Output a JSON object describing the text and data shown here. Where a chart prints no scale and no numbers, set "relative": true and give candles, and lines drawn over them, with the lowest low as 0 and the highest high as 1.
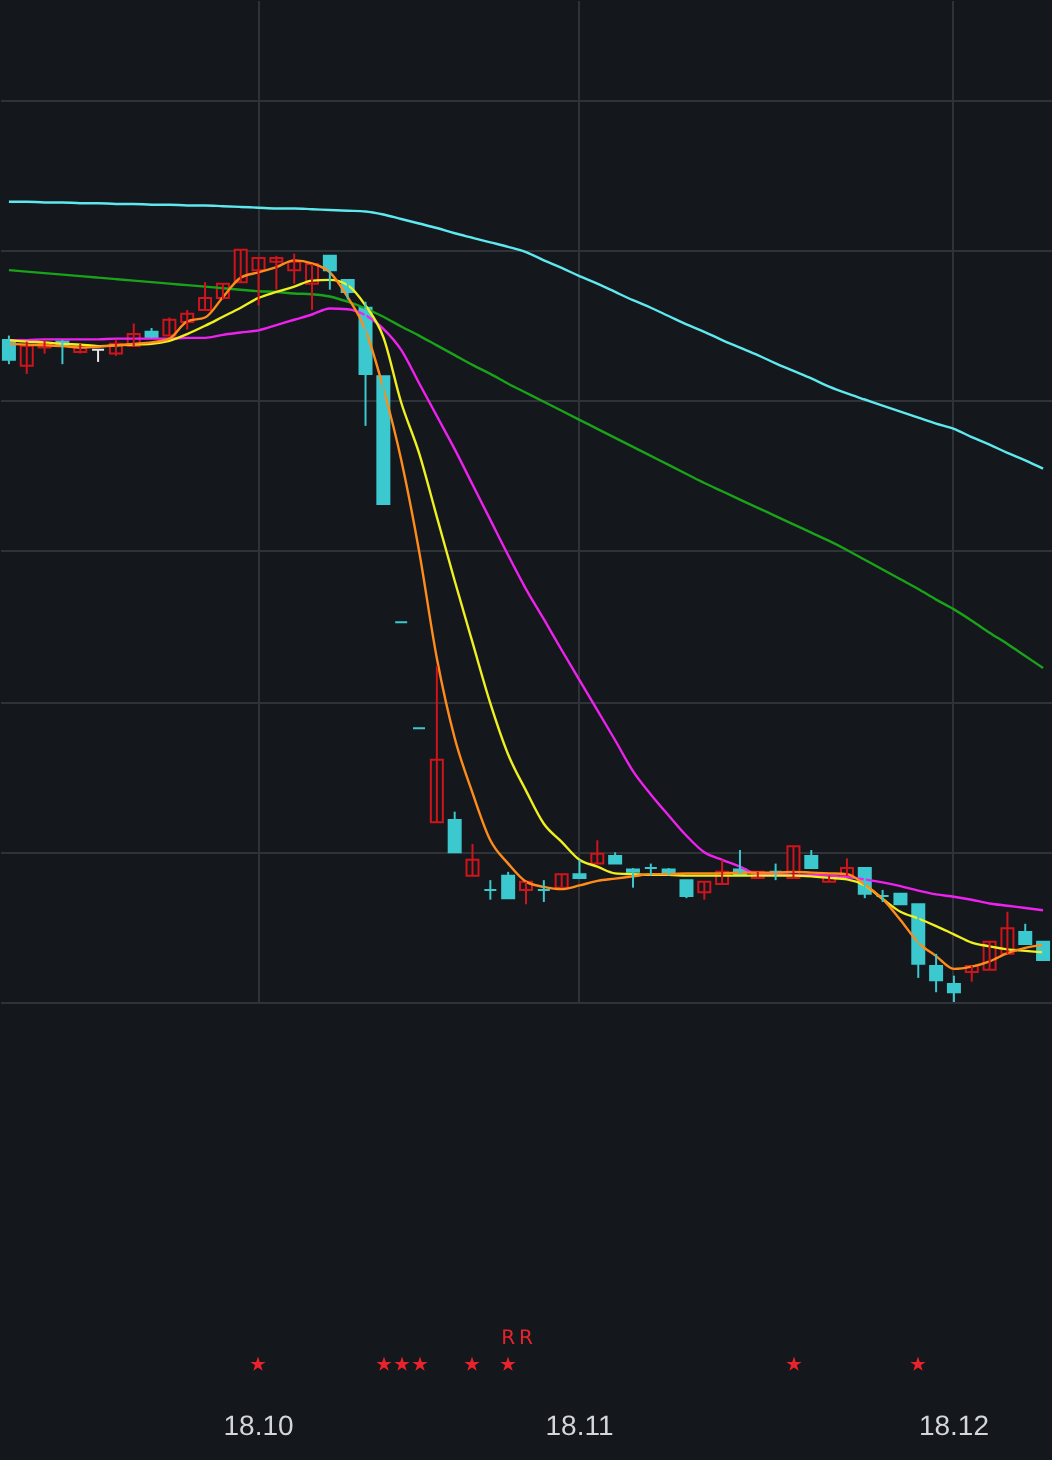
{
  "chart_data": {
    "type": "candlestick",
    "relative": true,
    "grid": true,
    "categories": [
      null,
      null,
      null,
      null,
      null,
      null,
      null,
      null,
      null,
      null,
      null,
      null,
      null,
      null,
      "18.10",
      null,
      null,
      null,
      null,
      null,
      null,
      null,
      null,
      null,
      null,
      null,
      null,
      null,
      null,
      null,
      null,
      null,
      "18.11",
      null,
      null,
      null,
      null,
      null,
      null,
      null,
      null,
      null,
      null,
      null,
      null,
      null,
      null,
      null,
      null,
      null,
      null,
      null,
      null,
      "18.12",
      null,
      null,
      null,
      null,
      null
    ],
    "ohlc": [
      [
        0.88,
        0.886,
        0.848,
        0.854
      ],
      [
        0.846,
        0.878,
        0.835,
        0.872
      ],
      [
        0.87,
        0.88,
        0.862,
        0.875
      ],
      [
        0.878,
        0.88,
        0.848,
        0.872
      ],
      [
        0.864,
        0.875,
        0.862,
        0.87
      ],
      [
        0.867,
        0.867,
        0.851,
        0.867
      ],
      [
        0.862,
        0.88,
        0.859,
        0.875
      ],
      [
        0.872,
        0.902,
        0.872,
        0.888
      ],
      [
        0.891,
        0.896,
        0.883,
        0.883
      ],
      [
        0.886,
        0.91,
        0.886,
        0.907
      ],
      [
        0.904,
        0.92,
        0.894,
        0.915
      ],
      [
        0.92,
        0.957,
        0.92,
        0.936
      ],
      [
        0.936,
        0.955,
        0.934,
        0.955
      ],
      [
        0.957,
        1.0,
        0.957,
        1.0
      ],
      [
        0.973,
        0.989,
        0.926,
        0.989
      ],
      [
        0.984,
        0.992,
        0.947,
        0.989
      ],
      [
        0.973,
        0.995,
        0.955,
        0.984
      ],
      [
        0.955,
        0.981,
        0.92,
        0.981
      ],
      [
        0.992,
        0.992,
        0.947,
        0.973
      ],
      [
        0.96,
        0.96,
        0.934,
        0.944
      ],
      [
        0.923,
        0.931,
        0.766,
        0.835
      ],
      [
        0.832,
        0.832,
        0.662,
        0.662
      ],
      [
        0.505,
        0.505,
        0.505,
        0.505
      ],
      [
        0.364,
        0.364,
        0.364,
        0.364
      ],
      [
        0.239,
        0.447,
        0.239,
        0.322
      ],
      [
        0.242,
        0.253,
        0.199,
        0.199
      ],
      [
        0.168,
        0.21,
        0.168,
        0.189
      ],
      [
        0.149,
        0.162,
        0.136,
        0.149
      ],
      [
        0.168,
        0.173,
        0.138,
        0.138
      ],
      [
        0.149,
        0.16,
        0.13,
        0.16
      ],
      [
        0.149,
        0.162,
        0.133,
        0.149
      ],
      [
        0.152,
        0.17,
        0.152,
        0.17
      ],
      [
        0.17,
        0.189,
        0.165,
        0.165
      ],
      [
        0.184,
        0.215,
        0.184,
        0.197
      ],
      [
        0.194,
        0.199,
        0.184,
        0.184
      ],
      [
        0.176,
        0.178,
        0.152,
        0.173
      ],
      [
        0.178,
        0.184,
        0.168,
        0.178
      ],
      [
        0.176,
        0.178,
        0.168,
        0.17
      ],
      [
        0.162,
        0.162,
        0.138,
        0.141
      ],
      [
        0.146,
        0.16,
        0.136,
        0.16
      ],
      [
        0.157,
        0.189,
        0.157,
        0.173
      ],
      [
        0.176,
        0.202,
        0.17,
        0.17
      ],
      [
        0.165,
        0.173,
        0.165,
        0.173
      ],
      [
        0.173,
        0.184,
        0.162,
        0.173
      ],
      [
        0.165,
        0.207,
        0.165,
        0.207
      ],
      [
        0.194,
        0.202,
        0.178,
        0.178
      ],
      [
        0.16,
        0.168,
        0.16,
        0.168
      ],
      [
        0.168,
        0.191,
        0.168,
        0.178
      ],
      [
        0.178,
        0.178,
        0.138,
        0.144
      ],
      [
        0.141,
        0.149,
        0.133,
        0.141
      ],
      [
        0.144,
        0.144,
        0.13,
        0.13
      ],
      [
        0.13,
        0.13,
        0.032,
        0.051
      ],
      [
        0.048,
        0.064,
        0.013,
        0.029
      ],
      [
        0.024,
        0.035,
        0.0,
        0.013
      ],
      [
        0.04,
        0.048,
        0.027,
        0.048
      ],
      [
        0.043,
        0.08,
        0.043,
        0.08
      ],
      [
        0.064,
        0.12,
        0.064,
        0.098
      ],
      [
        0.093,
        0.104,
        0.077,
        0.077
      ],
      [
        0.08,
        0.08,
        0.056,
        0.056
      ]
    ],
    "colors": [
      "#3bc9cf",
      "#d0141c",
      "#d0141c",
      "#3bc9cf",
      "#d0141c",
      "#e8e8e8",
      "#d0141c",
      "#d0141c",
      "#3bc9cf",
      "#d0141c",
      "#d0141c",
      "#d0141c",
      "#d0141c",
      "#d0141c",
      "#d0141c",
      "#d0141c",
      "#d0141c",
      "#d0141c",
      "#3bc9cf",
      "#3bc9cf",
      "#3bc9cf",
      "#3bc9cf",
      "#3bc9cf",
      "#3bc9cf",
      "#d0141c",
      "#3bc9cf",
      "#d0141c",
      "#3bc9cf",
      "#3bc9cf",
      "#d0141c",
      "#3bc9cf",
      "#d0141c",
      "#3bc9cf",
      "#d0141c",
      "#3bc9cf",
      "#3bc9cf",
      "#3bc9cf",
      "#3bc9cf",
      "#3bc9cf",
      "#d0141c",
      "#d0141c",
      "#3bc9cf",
      "#d0141c",
      "#3bc9cf",
      "#d0141c",
      "#3bc9cf",
      "#d0141c",
      "#d0141c",
      "#3bc9cf",
      "#3bc9cf",
      "#3bc9cf",
      "#3bc9cf",
      "#3bc9cf",
      "#3bc9cf",
      "#d0141c",
      "#d0141c",
      "#d0141c",
      "#3bc9cf",
      "#3bc9cf"
    ],
    "series": [
      {
        "type": "line",
        "color": "#5ee9ee",
        "values": [
          1.064,
          1.064,
          1.063,
          1.063,
          1.062,
          1.062,
          1.061,
          1.061,
          1.06,
          1.06,
          1.059,
          1.059,
          1.058,
          1.057,
          1.056,
          1.055,
          1.055,
          1.054,
          1.053,
          1.052,
          1.051,
          1.047,
          1.041,
          1.035,
          1.029,
          1.022,
          1.016,
          1.01,
          1.004,
          0.997,
          0.986,
          0.976,
          0.965,
          0.955,
          0.944,
          0.933,
          0.923,
          0.912,
          0.901,
          0.891,
          0.88,
          0.87,
          0.86,
          0.849,
          0.839,
          0.829,
          0.818,
          0.809,
          0.801,
          0.793,
          0.785,
          0.777,
          0.769,
          0.762,
          0.751,
          0.741,
          0.73,
          0.72,
          0.709
        ]
      },
      {
        "type": "line",
        "color": "#19a319",
        "values": [
          0.973,
          0.971,
          0.969,
          0.967,
          0.965,
          0.963,
          0.961,
          0.959,
          0.957,
          0.955,
          0.953,
          0.951,
          0.949,
          0.947,
          0.945,
          0.944,
          0.942,
          0.941,
          0.938,
          0.931,
          0.922,
          0.911,
          0.898,
          0.886,
          0.873,
          0.86,
          0.847,
          0.835,
          0.822,
          0.81,
          0.798,
          0.786,
          0.774,
          0.762,
          0.75,
          0.738,
          0.726,
          0.714,
          0.702,
          0.69,
          0.679,
          0.668,
          0.657,
          0.646,
          0.635,
          0.624,
          0.613,
          0.601,
          0.588,
          0.575,
          0.562,
          0.549,
          0.535,
          0.522,
          0.507,
          0.491,
          0.476,
          0.46,
          0.444
        ]
      },
      {
        "type": "line",
        "color": "#ee22ee",
        "values": [
          0.88,
          0.88,
          0.881,
          0.881,
          0.881,
          0.881,
          0.882,
          0.882,
          0.882,
          0.882,
          0.883,
          0.883,
          0.887,
          0.89,
          0.893,
          0.9,
          0.907,
          0.914,
          0.922,
          0.921,
          0.913,
          0.895,
          0.867,
          0.823,
          0.779,
          0.735,
          0.688,
          0.641,
          0.594,
          0.549,
          0.509,
          0.468,
          0.428,
          0.388,
          0.348,
          0.307,
          0.276,
          0.248,
          0.221,
          0.199,
          0.189,
          0.18,
          0.17,
          0.17,
          0.169,
          0.169,
          0.168,
          0.166,
          0.163,
          0.159,
          0.154,
          0.148,
          0.143,
          0.14,
          0.136,
          0.131,
          0.128,
          0.125,
          0.122
        ]
      },
      {
        "type": "line",
        "color": "#f0f020",
        "values": [
          0.88,
          0.878,
          0.877,
          0.875,
          0.874,
          0.872,
          0.873,
          0.874,
          0.875,
          0.879,
          0.888,
          0.899,
          0.911,
          0.923,
          0.936,
          0.944,
          0.951,
          0.959,
          0.96,
          0.953,
          0.926,
          0.884,
          0.797,
          0.73,
          0.645,
          0.56,
          0.478,
          0.397,
          0.329,
          0.281,
          0.237,
          0.213,
          0.189,
          0.18,
          0.171,
          0.17,
          0.169,
          0.169,
          0.168,
          0.168,
          0.168,
          0.168,
          0.168,
          0.168,
          0.168,
          0.167,
          0.165,
          0.163,
          0.155,
          0.137,
          0.12,
          0.111,
          0.101,
          0.09,
          0.079,
          0.074,
          0.07,
          0.068,
          0.066
        ]
      },
      {
        "type": "line",
        "color": "#ff8c1a",
        "values": [
          0.875,
          0.874,
          0.873,
          0.872,
          0.87,
          0.871,
          0.873,
          0.875,
          0.877,
          0.882,
          0.905,
          0.91,
          0.937,
          0.963,
          0.97,
          0.977,
          0.986,
          0.982,
          0.97,
          0.937,
          0.893,
          0.816,
          0.721,
          0.6,
          0.457,
          0.351,
          0.278,
          0.215,
          0.184,
          0.16,
          0.153,
          0.15,
          0.155,
          0.161,
          0.164,
          0.167,
          0.17,
          0.17,
          0.171,
          0.171,
          0.171,
          0.172,
          0.172,
          0.172,
          0.173,
          0.172,
          0.171,
          0.17,
          0.156,
          0.137,
          0.109,
          0.079,
          0.061,
          0.044,
          0.047,
          0.054,
          0.065,
          0.072,
          0.076
        ]
      }
    ],
    "annotations": [
      "R",
      "R"
    ]
  }
}
